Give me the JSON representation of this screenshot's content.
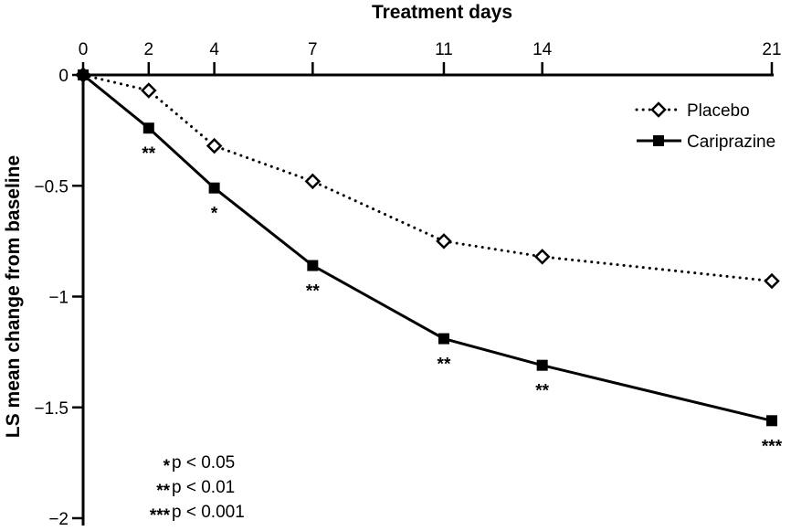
{
  "chart_data": {
    "type": "line",
    "title": "",
    "xlabel": "Treatment days",
    "ylabel": "LS mean change from baseline",
    "x": [
      0,
      2,
      4,
      7,
      11,
      14,
      21
    ],
    "x_tick_labels": [
      "0",
      "2",
      "4",
      "7",
      "11",
      "14",
      "21"
    ],
    "xlim": [
      0,
      21
    ],
    "ylim": [
      -2,
      0
    ],
    "y_ticks": [
      0,
      -0.5,
      -1,
      -1.5,
      -2
    ],
    "y_tick_labels": [
      "0",
      "−0.5",
      "−1",
      "−1.5",
      "−2"
    ],
    "x_axis_position": "top",
    "grid": false,
    "legend_position": "top-right",
    "series": [
      {
        "name": "Placebo",
        "marker": "open-diamond",
        "line_style": "dotted",
        "color": "#000000",
        "values": [
          0,
          -0.07,
          -0.32,
          -0.48,
          -0.75,
          -0.82,
          -0.93
        ]
      },
      {
        "name": "Cariprazine",
        "marker": "filled-square",
        "line_style": "solid",
        "color": "#000000",
        "values": [
          0,
          -0.24,
          -0.51,
          -0.86,
          -1.19,
          -1.31,
          -1.56
        ],
        "annotations": [
          "",
          "**",
          "*",
          "**",
          "**",
          "**",
          "***"
        ]
      }
    ],
    "significance_key": [
      {
        "stars": "*",
        "text": "p < 0.05"
      },
      {
        "stars": "**",
        "text": "p < 0.01"
      },
      {
        "stars": "***",
        "text": "p < 0.001"
      }
    ]
  }
}
